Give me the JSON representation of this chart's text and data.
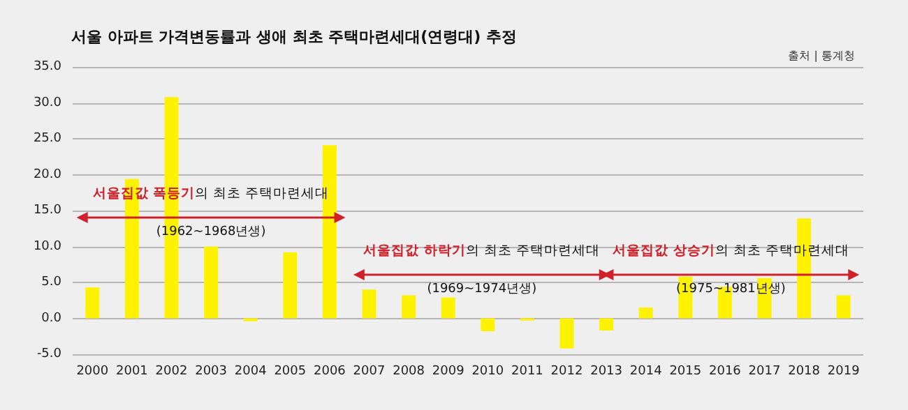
{
  "chart_data": {
    "type": "bar",
    "title": "서울 아파트 가격변동률과 생애 최초 주택마련세대(연령대) 추정",
    "categories": [
      "2000",
      "2001",
      "2002",
      "2003",
      "2004",
      "2005",
      "2006",
      "2007",
      "2008",
      "2009",
      "2010",
      "2011",
      "2012",
      "2013",
      "2014",
      "2015",
      "2016",
      "2017",
      "2018",
      "2019"
    ],
    "values": [
      4.3,
      19.4,
      30.8,
      10.0,
      -0.4,
      9.2,
      24.1,
      4.0,
      3.2,
      2.9,
      -1.8,
      -0.3,
      -4.2,
      -1.7,
      1.5,
      5.8,
      4.4,
      5.6,
      13.9,
      3.2
    ],
    "color": "#fff200",
    "ylim": [
      -5,
      35
    ],
    "yticks": [
      {
        "value": -5,
        "label": "-5.0"
      },
      {
        "value": 0,
        "label": "0.0"
      },
      {
        "value": 5,
        "label": "5.0"
      },
      {
        "value": 10,
        "label": "10.0"
      },
      {
        "value": 15,
        "label": "15.0"
      },
      {
        "value": 20,
        "label": "20.0"
      },
      {
        "value": 25,
        "label": "25.0"
      },
      {
        "value": 30,
        "label": "30.0"
      },
      {
        "value": 35,
        "label": "35.0"
      }
    ],
    "grid": "y",
    "annotations": [
      "출처 | 통계청",
      "서울집값 폭등기",
      "의 최초 주택마련세대",
      "(1962~1968년생)",
      "서울집값 하락기",
      "의 최초 주택마련세대",
      "(1969~1974년생)",
      "서울집값 상승기",
      "의 최초 주택마련세대",
      "(1975~1981년생)"
    ]
  }
}
